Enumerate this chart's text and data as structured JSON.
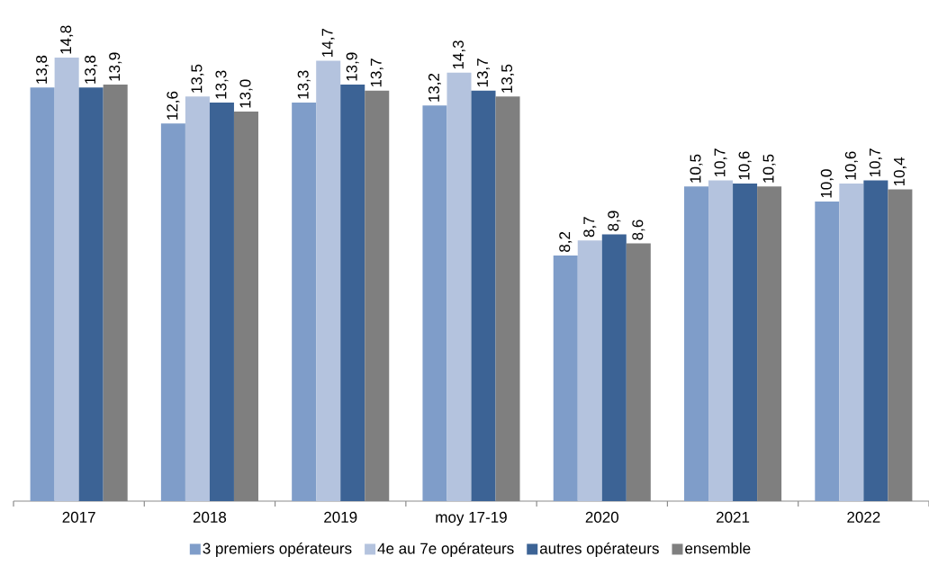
{
  "chart_data": {
    "type": "bar",
    "categories": [
      "2017",
      "2018",
      "2019",
      "moy 17-19",
      "2020",
      "2021",
      "2022"
    ],
    "series": [
      {
        "name": "3 premiers opérateurs",
        "color": "#7f9dc9",
        "values": [
          13.8,
          12.6,
          13.3,
          13.2,
          8.2,
          10.5,
          10.0
        ],
        "value_labels": [
          "13,8",
          "12,6",
          "13,3",
          "13,2",
          "8,2",
          "10,5",
          "10,0"
        ]
      },
      {
        "name": "4e au 7e opérateurs",
        "color": "#b4c3de",
        "values": [
          14.8,
          13.5,
          14.7,
          14.3,
          8.7,
          10.7,
          10.6
        ],
        "value_labels": [
          "14,8",
          "13,5",
          "14,7",
          "14,3",
          "8,7",
          "10,7",
          "10,6"
        ]
      },
      {
        "name": "autres opérateurs",
        "color": "#3c6395",
        "values": [
          13.8,
          13.3,
          13.9,
          13.7,
          8.9,
          10.6,
          10.7
        ],
        "value_labels": [
          "13,8",
          "13,3",
          "13,9",
          "13,7",
          "8,9",
          "10,6",
          "10,7"
        ]
      },
      {
        "name": "ensemble",
        "color": "#7f7f7f",
        "values": [
          13.9,
          13.0,
          13.7,
          13.5,
          8.6,
          10.5,
          10.4
        ],
        "value_labels": [
          "13,9",
          "13,0",
          "13,7",
          "13,5",
          "8,6",
          "10,5",
          "10,4"
        ]
      }
    ],
    "legend": "bottom"
  }
}
